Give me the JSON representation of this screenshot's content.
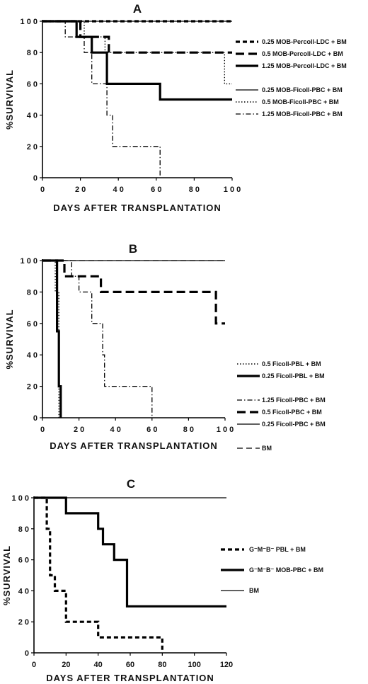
{
  "chart_data": [
    {
      "panel": "A",
      "type": "line",
      "step": true,
      "xlabel": "DAYS AFTER TRANSPLANTATION",
      "ylabel": "%SURVIVAL",
      "xlim": [
        0,
        100
      ],
      "ylim": [
        0,
        100
      ],
      "xticks": [
        0,
        20,
        40,
        60,
        80,
        100
      ],
      "yticks": [
        0,
        20,
        40,
        60,
        80,
        100
      ],
      "xticklabels": [
        "0",
        "2 0",
        "4 0",
        "6 0",
        "8 0",
        "1 0 0"
      ],
      "yticklabels": [
        "0",
        "2 0",
        "4 0",
        "6 0",
        "8 0",
        "1 0 0"
      ],
      "series": [
        {
          "name": "0.25  MOB-Percoll-LDC  +  BM",
          "style": "heavy-short-dash",
          "points": [
            [
              0,
              100
            ],
            [
              100,
              100
            ]
          ]
        },
        {
          "name": "0.5  MOB-Percoll-LDC  +  BM",
          "style": "heavy-long-dash",
          "points": [
            [
              0,
              100
            ],
            [
              20,
              100
            ],
            [
              20,
              90
            ],
            [
              35,
              90
            ],
            [
              35,
              80
            ],
            [
              100,
              80
            ]
          ]
        },
        {
          "name": "1.25  MOB-Percoll-LDC  +  BM",
          "style": "heavy-solid",
          "points": [
            [
              0,
              100
            ],
            [
              18,
              100
            ],
            [
              18,
              90
            ],
            [
              26,
              90
            ],
            [
              26,
              80
            ],
            [
              34,
              80
            ],
            [
              34,
              60
            ],
            [
              62,
              60
            ],
            [
              62,
              50
            ],
            [
              100,
              50
            ]
          ]
        },
        {
          "name": "0.25  MOB-Ficoll-PBC  +  BM",
          "style": "thin-solid",
          "points": [
            [
              0,
              100
            ],
            [
              100,
              100
            ]
          ]
        },
        {
          "name": "0.5  MOB-Ficoll-PBC  +  BM",
          "style": "dotted",
          "points": [
            [
              0,
              100
            ],
            [
              22,
              100
            ],
            [
              22,
              90
            ],
            [
              33,
              90
            ],
            [
              33,
              80
            ],
            [
              96,
              80
            ],
            [
              96,
              60
            ],
            [
              100,
              60
            ]
          ]
        },
        {
          "name": "1.25  MOB-Ficoll-PBC  +  BM",
          "style": "dash-dot",
          "points": [
            [
              0,
              100
            ],
            [
              12,
              100
            ],
            [
              12,
              90
            ],
            [
              22,
              90
            ],
            [
              22,
              80
            ],
            [
              26,
              80
            ],
            [
              26,
              60
            ],
            [
              34,
              60
            ],
            [
              34,
              40
            ],
            [
              37,
              40
            ],
            [
              37,
              20
            ],
            [
              62,
              20
            ],
            [
              62,
              0
            ]
          ]
        }
      ]
    },
    {
      "panel": "B",
      "type": "line",
      "step": true,
      "xlabel": "DAYS   AFTER TRANSPLANTATION",
      "ylabel": "%SURVIVAL",
      "xlim": [
        0,
        100
      ],
      "ylim": [
        0,
        100
      ],
      "xticks": [
        0,
        20,
        40,
        60,
        80,
        100
      ],
      "yticks": [
        0,
        20,
        40,
        60,
        80,
        100
      ],
      "xticklabels": [
        "0",
        "2 0",
        "4 0",
        "6 0",
        "8 0",
        "1 0 0"
      ],
      "yticklabels": [
        "0",
        "2 0",
        "4 0",
        "6 0",
        "8 0",
        "1 0 0"
      ],
      "series": [
        {
          "name": "0.5   Ficoll-PBL  +  BM",
          "style": "dotted",
          "points": [
            [
              0,
              100
            ],
            [
              7,
              100
            ],
            [
              7,
              80
            ],
            [
              9,
              80
            ],
            [
              9,
              0
            ]
          ]
        },
        {
          "name": "0.25  Ficoll-PBL  +  BM",
          "style": "heavy-solid",
          "points": [
            [
              0,
              100
            ],
            [
              8,
              100
            ],
            [
              8,
              55
            ],
            [
              9,
              55
            ],
            [
              9,
              20
            ],
            [
              10,
              20
            ],
            [
              10,
              0
            ]
          ]
        },
        {
          "name": "1.25  Ficoll-PBC  +  BM",
          "style": "dash-dot",
          "points": [
            [
              0,
              100
            ],
            [
              16,
              100
            ],
            [
              16,
              90
            ],
            [
              20,
              90
            ],
            [
              20,
              80
            ],
            [
              27,
              80
            ],
            [
              27,
              60
            ],
            [
              33,
              60
            ],
            [
              33,
              40
            ],
            [
              34,
              40
            ],
            [
              34,
              20
            ],
            [
              60,
              20
            ],
            [
              60,
              0
            ]
          ]
        },
        {
          "name": "0.5   Ficoll-PBC  +  BM",
          "style": "heavy-long-dash",
          "points": [
            [
              0,
              100
            ],
            [
              12,
              100
            ],
            [
              12,
              90
            ],
            [
              32,
              90
            ],
            [
              32,
              80
            ],
            [
              95,
              80
            ],
            [
              95,
              60
            ],
            [
              100,
              60
            ]
          ]
        },
        {
          "name": "0.25  Ficoll-PBC  +  BM",
          "style": "thin-solid",
          "points": [
            [
              0,
              100
            ],
            [
              100,
              100
            ]
          ]
        },
        {
          "name": "BM",
          "style": "thin-dash",
          "points": [
            [
              0,
              100
            ],
            [
              100,
              100
            ]
          ]
        }
      ]
    },
    {
      "panel": "C",
      "type": "line",
      "step": true,
      "xlabel": "DAYS  AFTER TRANSPLANTATION",
      "ylabel": "%SURVIVAL",
      "xlim": [
        0,
        120
      ],
      "ylim": [
        0,
        100
      ],
      "xticks": [
        0,
        20,
        40,
        60,
        80,
        100,
        120
      ],
      "yticks": [
        0,
        20,
        40,
        60,
        80,
        100
      ],
      "xticklabels": [
        "0",
        "20",
        "40",
        "60",
        "80",
        "100",
        "120"
      ],
      "yticklabels": [
        "0",
        "2 0",
        "4 0",
        "6 0",
        "8 0",
        "1 0 0"
      ],
      "series": [
        {
          "name": "G⁻M⁻B⁻ PBL + BM",
          "style": "heavy-short-dash",
          "points": [
            [
              0,
              100
            ],
            [
              8,
              100
            ],
            [
              8,
              80
            ],
            [
              10,
              80
            ],
            [
              10,
              50
            ],
            [
              13,
              50
            ],
            [
              13,
              40
            ],
            [
              20,
              40
            ],
            [
              20,
              20
            ],
            [
              40,
              20
            ],
            [
              40,
              10
            ],
            [
              80,
              10
            ],
            [
              80,
              0
            ]
          ]
        },
        {
          "name": "G⁻M⁻B⁻ MOB-PBC + BM",
          "style": "heavy-solid",
          "points": [
            [
              0,
              100
            ],
            [
              20,
              100
            ],
            [
              20,
              90
            ],
            [
              40,
              90
            ],
            [
              40,
              80
            ],
            [
              43,
              80
            ],
            [
              43,
              70
            ],
            [
              50,
              70
            ],
            [
              50,
              60
            ],
            [
              58,
              60
            ],
            [
              58,
              30
            ],
            [
              120,
              30
            ]
          ]
        },
        {
          "name": "BM",
          "style": "thin-solid",
          "points": [
            [
              0,
              100
            ],
            [
              120,
              100
            ]
          ]
        }
      ]
    }
  ]
}
